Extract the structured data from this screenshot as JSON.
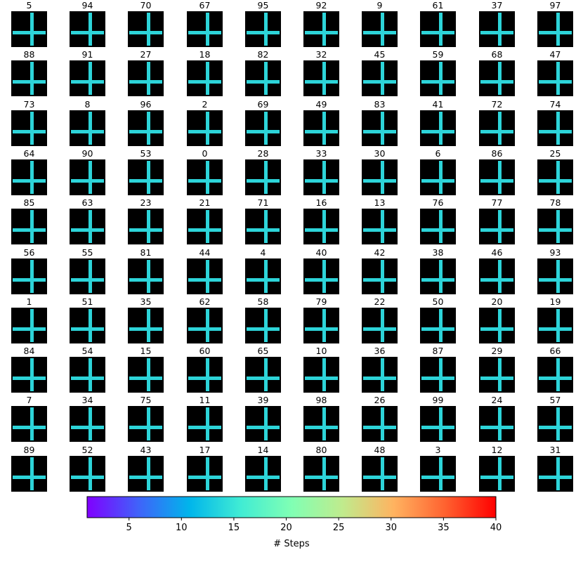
{
  "chart_data": {
    "type": "heatmap",
    "grid_rows": 10,
    "grid_cols": 10,
    "panel_titles": [
      "5",
      "94",
      "70",
      "67",
      "95",
      "92",
      "9",
      "61",
      "37",
      "97",
      "88",
      "91",
      "27",
      "18",
      "82",
      "32",
      "45",
      "59",
      "68",
      "47",
      "73",
      "8",
      "96",
      "2",
      "69",
      "49",
      "83",
      "41",
      "72",
      "74",
      "64",
      "90",
      "53",
      "0",
      "28",
      "33",
      "30",
      "6",
      "86",
      "25",
      "85",
      "63",
      "23",
      "21",
      "71",
      "16",
      "13",
      "76",
      "77",
      "78",
      "56",
      "55",
      "81",
      "44",
      "4",
      "40",
      "42",
      "38",
      "46",
      "93",
      "1",
      "51",
      "35",
      "62",
      "58",
      "79",
      "22",
      "50",
      "20",
      "19",
      "84",
      "54",
      "15",
      "60",
      "65",
      "10",
      "36",
      "87",
      "29",
      "66",
      "7",
      "34",
      "75",
      "11",
      "39",
      "98",
      "26",
      "99",
      "24",
      "57",
      "89",
      "52",
      "43",
      "17",
      "14",
      "80",
      "48",
      "3",
      "12",
      "31"
    ],
    "colorbar": {
      "label": "# Steps",
      "range": [
        1,
        40
      ],
      "ticks": [
        "5",
        "10",
        "15",
        "20",
        "25",
        "30",
        "35",
        "40"
      ],
      "colormap": "rainbow"
    },
    "background_color": "#000000",
    "wall_color": "#2dd4d9"
  }
}
